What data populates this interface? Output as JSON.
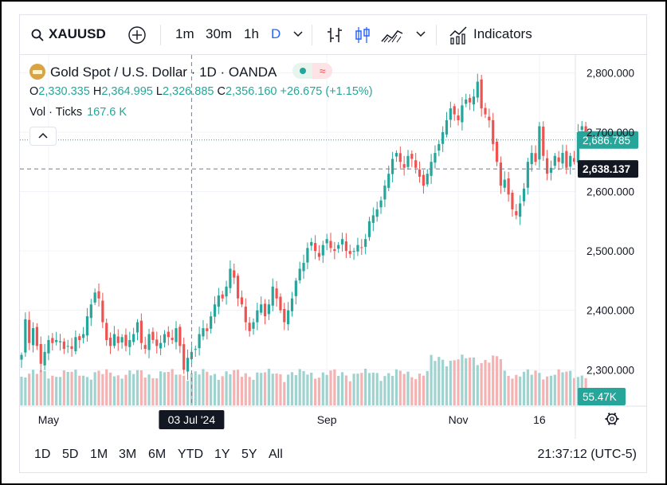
{
  "toolbar": {
    "symbol": "XAUUSD",
    "intervals": [
      "1m",
      "30m",
      "1h",
      "D"
    ],
    "indicators_label": "Indicators"
  },
  "legend": {
    "title": "Gold Spot / U.S. Dollar · 1D · OANDA",
    "open_label": "O",
    "open": "2,330.335",
    "high_label": "H",
    "high": "2,364.995",
    "low_label": "L",
    "low": "2,326.885",
    "close_label": "C",
    "close": "2,356.160",
    "change": "+26.675 (+1.15%)",
    "vol_label": "Vol · Ticks",
    "vol_value": "167.6 K"
  },
  "bottom": {
    "ranges": [
      "1D",
      "5D",
      "1M",
      "3M",
      "6M",
      "YTD",
      "1Y",
      "5Y",
      "All"
    ],
    "clock": "21:37:12 (UTC-5)"
  },
  "chart_data": {
    "type": "candlestick",
    "symbol": "XAUUSD",
    "title": "Gold Spot / U.S. Dollar · 1D · OANDA",
    "ylim": [
      2240,
      2830
    ],
    "y_ticks": [
      2300,
      2400,
      2500,
      2600,
      2700,
      2800
    ],
    "y_tick_labels": [
      "2,300.000",
      "2,400.000",
      "2,500.000",
      "2,600.000",
      "2,700.000",
      "2,800.000"
    ],
    "x_tick_labels": [
      "May",
      "Sep",
      "Nov",
      "16"
    ],
    "x_tick_index": [
      7,
      79,
      113,
      134
    ],
    "crosshair": {
      "index": 44,
      "date_label": "03 Jul '24",
      "price_label": "2,638.137",
      "price": 2638.137
    },
    "last_price": {
      "price": 2686.785,
      "label": "2,686.785"
    },
    "volume_label": "55.47K",
    "colors": {
      "up": "#26a69a",
      "down": "#ef5350",
      "up_vol": "#9fd3cf",
      "down_vol": "#f4b3b2",
      "crosshair_label_bg": "#131722"
    },
    "closes": [
      2325,
      2385,
      2345,
      2370,
      2340,
      2310,
      2330,
      2350,
      2345,
      2350,
      2348,
      2335,
      2340,
      2335,
      2355,
      2350,
      2360,
      2390,
      2410,
      2430,
      2420,
      2380,
      2350,
      2340,
      2360,
      2345,
      2355,
      2340,
      2350,
      2360,
      2380,
      2345,
      2335,
      2360,
      2350,
      2340,
      2345,
      2360,
      2355,
      2350,
      2370,
      2340,
      2300,
      2320,
      2330,
      2335,
      2360,
      2370,
      2365,
      2390,
      2410,
      2425,
      2420,
      2440,
      2470,
      2455,
      2420,
      2410,
      2380,
      2365,
      2380,
      2400,
      2410,
      2390,
      2410,
      2440,
      2420,
      2400,
      2380,
      2400,
      2420,
      2450,
      2470,
      2480,
      2505,
      2515,
      2500,
      2490,
      2510,
      2520,
      2505,
      2500,
      2510,
      2520,
      2500,
      2495,
      2500,
      2510,
      2505,
      2520,
      2550,
      2560,
      2570,
      2585,
      2610,
      2630,
      2655,
      2665,
      2650,
      2640,
      2660,
      2655,
      2640,
      2625,
      2610,
      2630,
      2650,
      2665,
      2680,
      2700,
      2720,
      2740,
      2730,
      2720,
      2745,
      2755,
      2750,
      2760,
      2785,
      2740,
      2730,
      2720,
      2680,
      2650,
      2610,
      2620,
      2595,
      2570,
      2560,
      2580,
      2605,
      2650,
      2665,
      2650,
      2710,
      2660,
      2630,
      2640,
      2660,
      2650,
      2665,
      2640,
      2660,
      2650,
      2700,
      2710,
      2687
    ]
  }
}
